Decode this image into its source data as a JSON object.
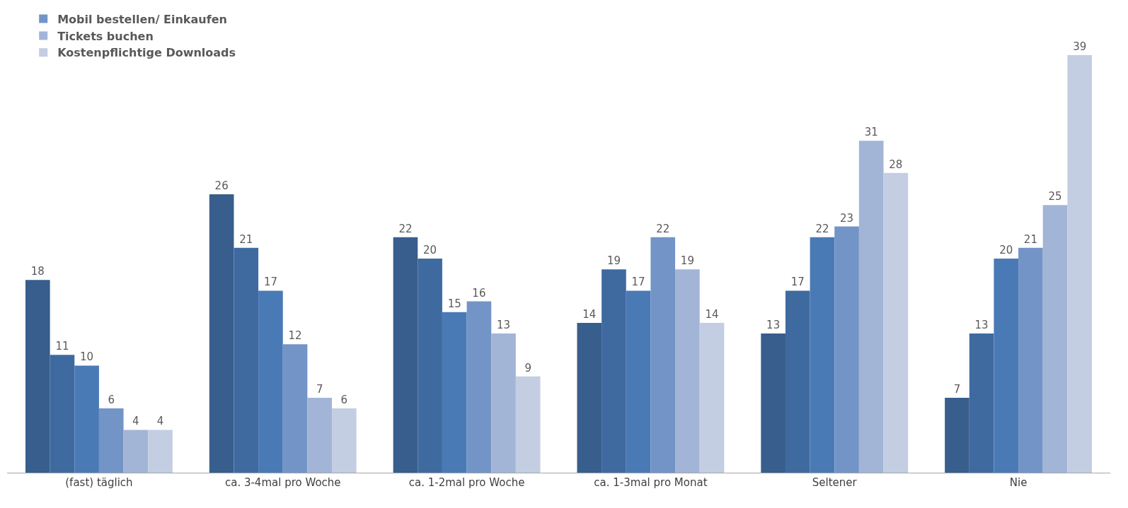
{
  "chart_data": {
    "type": "bar",
    "categories": [
      "(fast) täglich",
      "ca. 3-4mal pro Woche",
      "ca. 1-2mal pro Woche",
      "ca. 1-3mal pro Monat",
      "Seltener",
      "Nie"
    ],
    "series": [
      {
        "color": "#375e8c",
        "values": [
          18,
          26,
          22,
          14,
          13,
          7
        ]
      },
      {
        "color": "#3f6aa0",
        "values": [
          11,
          21,
          20,
          19,
          17,
          13
        ]
      },
      {
        "color": "#4a7ab5",
        "values": [
          10,
          17,
          15,
          17,
          22,
          20
        ]
      },
      {
        "name": "Mobil bestellen/ Einkaufen",
        "color": "#7394c6",
        "values": [
          6,
          12,
          16,
          22,
          23,
          21
        ]
      },
      {
        "name": "Tickets buchen",
        "color": "#a3b5d6",
        "values": [
          4,
          7,
          13,
          19,
          31,
          25
        ]
      },
      {
        "name": "Kostenpflichtige Downloads",
        "color": "#c3cee3",
        "values": [
          4,
          6,
          9,
          14,
          28,
          39
        ]
      }
    ],
    "data_labels": true,
    "legend": "top left"
  }
}
